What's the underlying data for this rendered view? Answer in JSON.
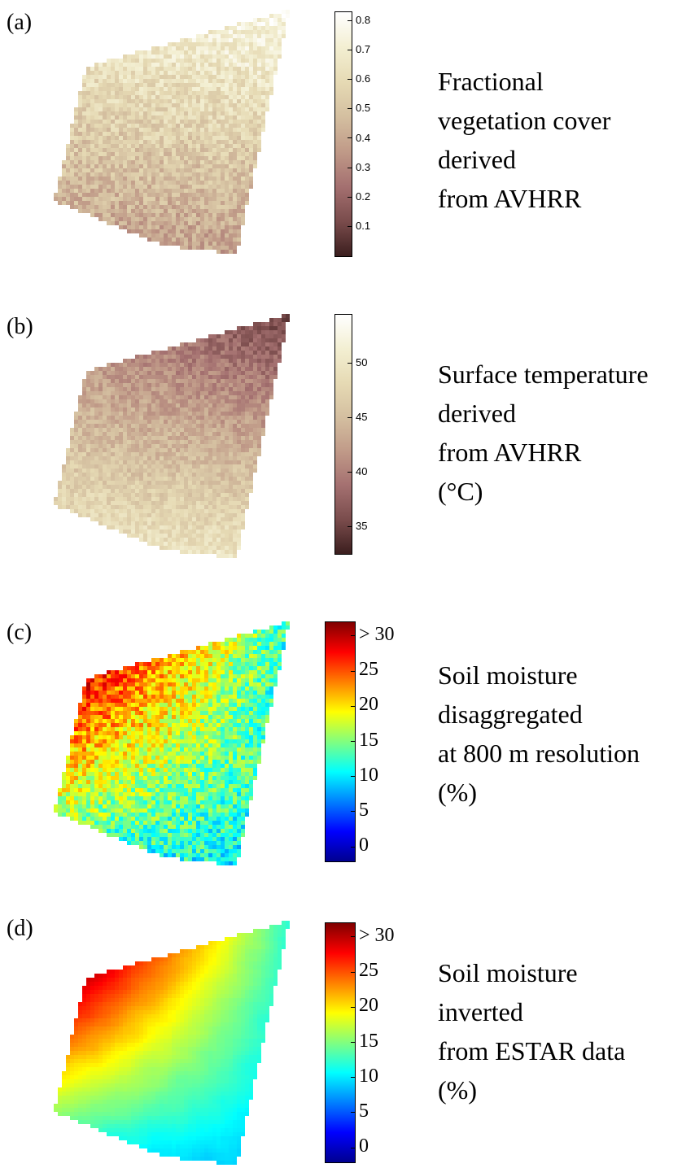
{
  "panels": [
    {
      "label": "(a)",
      "caption": [
        "Fractional",
        "vegetation cover",
        "derived",
        "from AVHRR"
      ],
      "colorbar": {
        "min": 0.0,
        "max": 0.83,
        "ticks": [
          0.1,
          0.2,
          0.3,
          0.4,
          0.5,
          0.6,
          0.7,
          0.8
        ],
        "tick_labels": [
          "0.1",
          "0.2",
          "0.3",
          "0.4",
          "0.5",
          "0.6",
          "0.7",
          "0.8"
        ],
        "colormap": "pink",
        "colors": [
          "#3b1e1e",
          "#7a4c4c",
          "#a47070",
          "#c09a88",
          "#d4bfa0",
          "#e6dab4",
          "#f3efd2",
          "#ffffff"
        ]
      },
      "field": {
        "base": 0.55,
        "trend_x": 0.05,
        "trend_y": -0.18,
        "noise": 0.1
      }
    },
    {
      "label": "(b)",
      "caption": [
        "Surface temperature",
        "derived",
        "from AVHRR",
        "(°C)"
      ],
      "colorbar": {
        "min": 32.5,
        "max": 54.5,
        "ticks": [
          35,
          40,
          45,
          50
        ],
        "tick_labels": [
          "35",
          "40",
          "45",
          "50"
        ],
        "colormap": "pink",
        "colors": [
          "#3b1e1e",
          "#7a4c4c",
          "#a47070",
          "#c09a88",
          "#d4bfa0",
          "#e6dab4",
          "#f3efd2",
          "#ffffff"
        ]
      },
      "field": {
        "base": 44,
        "trend_x": -3,
        "trend_y": 6,
        "noise": 2
      }
    },
    {
      "label": "(c)",
      "caption": [
        "Soil moisture",
        "disaggregated",
        "at 800 m resolution",
        "(%)"
      ],
      "colorbar": {
        "min": -2,
        "max": 32,
        "ticks": [
          0,
          5,
          10,
          15,
          20,
          25,
          30
        ],
        "tick_labels": [
          "0",
          "5",
          "10",
          "15",
          "20",
          "25",
          "> 30"
        ],
        "colormap": "jet",
        "colors": [
          "#00008f",
          "#0000ff",
          "#0080ff",
          "#00ffff",
          "#80ff80",
          "#ffff00",
          "#ff8000",
          "#ff0000",
          "#800000"
        ]
      },
      "field": {
        "base": 17,
        "trend_x": -12,
        "trend_y": -6,
        "noise": 4
      }
    },
    {
      "label": "(d)",
      "caption": [
        "Soil moisture",
        "inverted",
        "from ESTAR data",
        "(%)"
      ],
      "colorbar": {
        "min": -2,
        "max": 32,
        "ticks": [
          0,
          5,
          10,
          15,
          20,
          25,
          30
        ],
        "tick_labels": [
          "0",
          "5",
          "10",
          "15",
          "20",
          "25",
          "> 30"
        ],
        "colormap": "jet",
        "colors": [
          "#00008f",
          "#0000ff",
          "#0080ff",
          "#00ffff",
          "#80ff80",
          "#ffff00",
          "#ff8000",
          "#ff0000",
          "#800000"
        ]
      },
      "field": {
        "base": 17,
        "trend_x": -14,
        "trend_y": -8,
        "noise": 1.5
      }
    }
  ]
}
